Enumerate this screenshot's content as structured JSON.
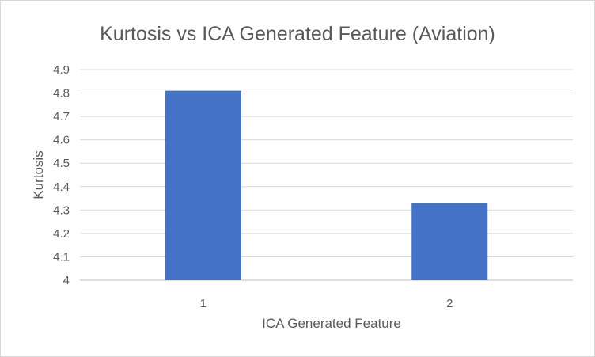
{
  "chart_data": {
    "type": "bar",
    "title": "Kurtosis vs ICA Generated Feature (Aviation)",
    "xlabel": "ICA Generated Feature",
    "ylabel": "Kurtosis",
    "categories": [
      "1",
      "2"
    ],
    "values": [
      4.81,
      4.33
    ],
    "ylim": [
      4,
      4.9
    ],
    "yticks": [
      "4",
      "4.1",
      "4.2",
      "4.3",
      "4.4",
      "4.5",
      "4.6",
      "4.7",
      "4.8",
      "4.9"
    ],
    "grid": true,
    "legend": "none",
    "bar_color": "#4472c4"
  }
}
